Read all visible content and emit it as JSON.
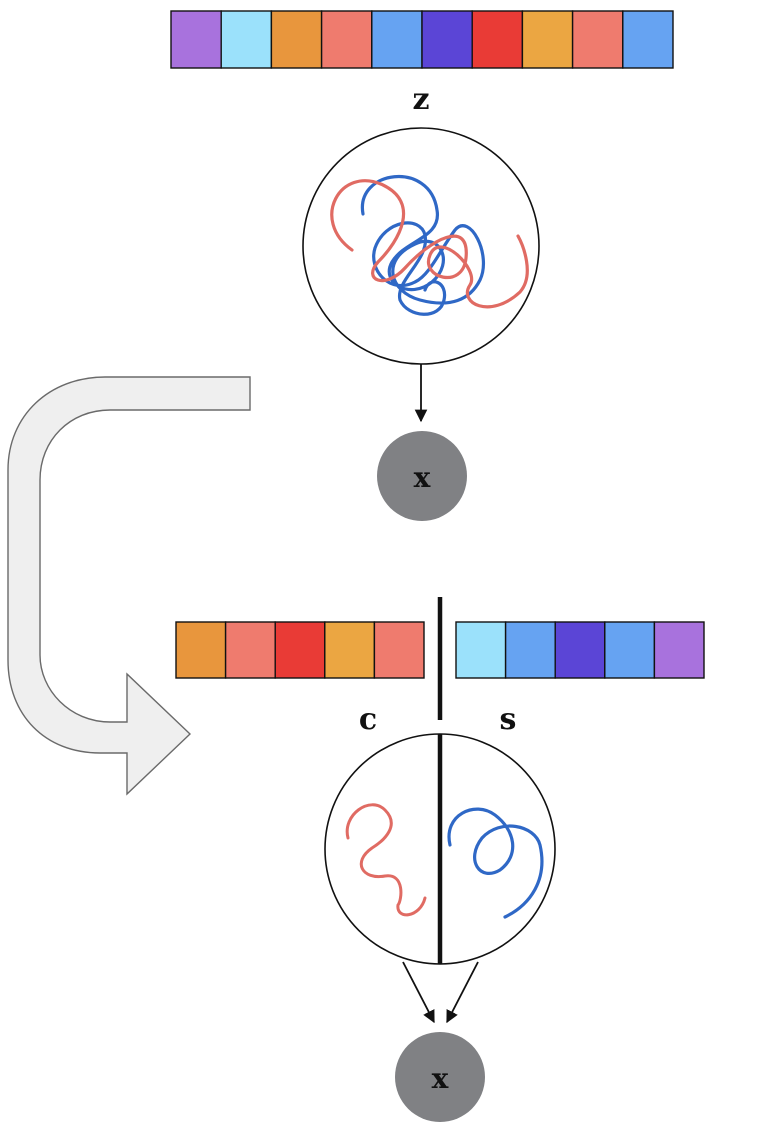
{
  "top": {
    "latent_label": "z",
    "latent_cells": [
      "#a872dd",
      "#9be1fb",
      "#e8963d",
      "#ef7b6e",
      "#66a3f2",
      "#5b45d6",
      "#e93b36",
      "#eba642",
      "#ef7b6e",
      "#66a3f2"
    ],
    "node_label": "x"
  },
  "bottom": {
    "content_label": "c",
    "style_label": "s",
    "content_cells": [
      "#e8963d",
      "#ef7b6e",
      "#e93b36",
      "#eba642",
      "#ef7b6e"
    ],
    "style_cells": [
      "#9be1fb",
      "#66a3f2",
      "#5b45d6",
      "#66a3f2",
      "#a872dd"
    ],
    "node_label": "x"
  },
  "colors": {
    "content_curve": "#e06b63",
    "style_curve": "#2f68c6",
    "node_fill": "#808184",
    "arrow_fill": "#efefef"
  }
}
